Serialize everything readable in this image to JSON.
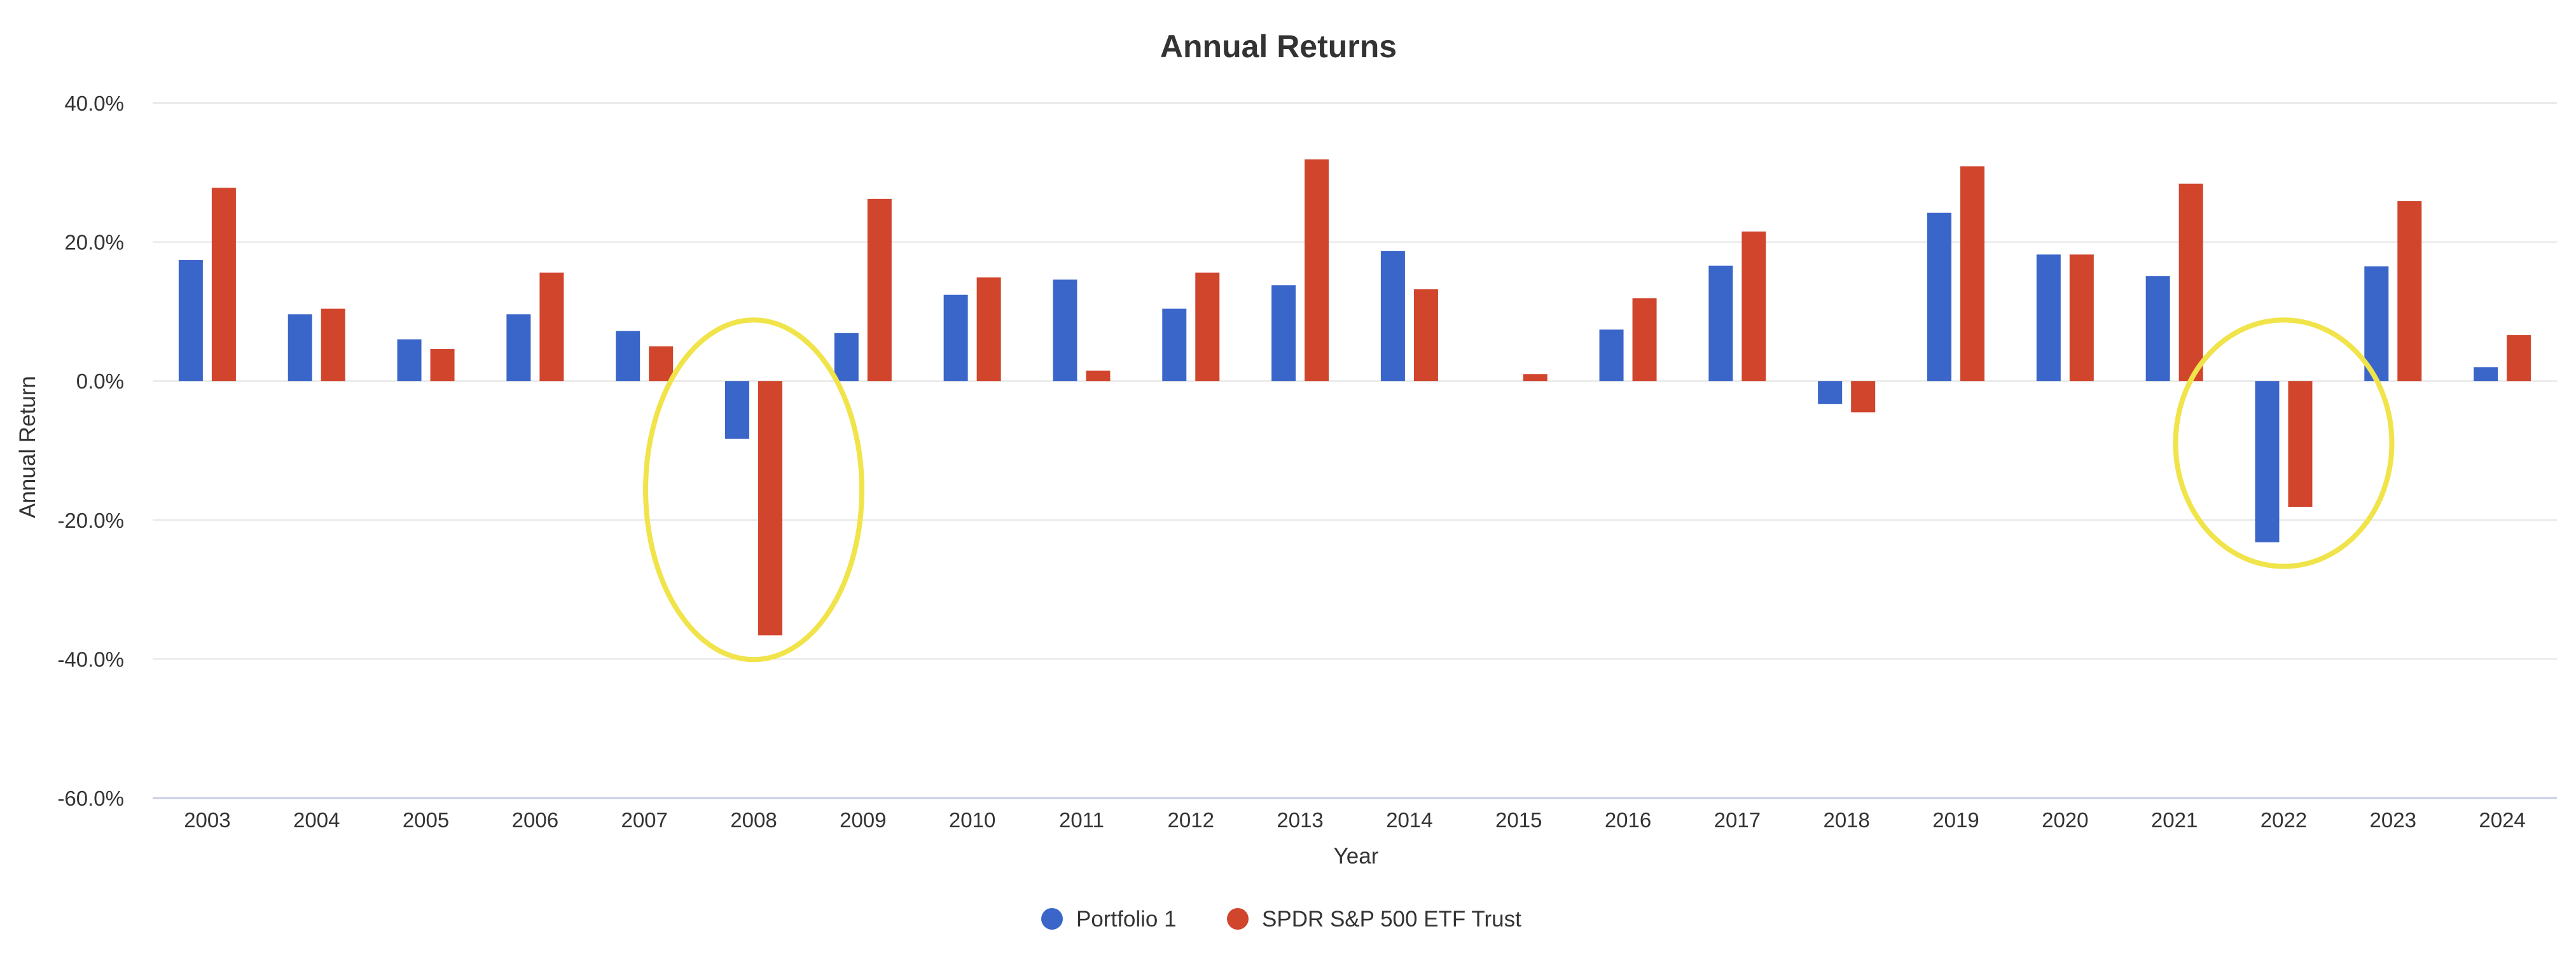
{
  "chart_data": {
    "type": "bar",
    "title": "Annual Returns",
    "xlabel": "Year",
    "ylabel": "Annual Return",
    "ylim": [
      -60,
      40
    ],
    "yticks": [
      40,
      20,
      0,
      -20,
      -40,
      -60
    ],
    "ytick_labels": [
      "40.0%",
      "20.0%",
      "0.0%",
      "-20.0%",
      "-40.0%",
      "-60.0%"
    ],
    "grid": true,
    "legend_position": "bottom-center",
    "categories": [
      "2003",
      "2004",
      "2005",
      "2006",
      "2007",
      "2008",
      "2009",
      "2010",
      "2011",
      "2012",
      "2013",
      "2014",
      "2015",
      "2016",
      "2017",
      "2018",
      "2019",
      "2020",
      "2021",
      "2022",
      "2023",
      "2024"
    ],
    "series": [
      {
        "name": "Portfolio 1",
        "color": "#3b66c9",
        "values": [
          17.4,
          9.6,
          6.0,
          9.6,
          7.2,
          -8.3,
          6.9,
          12.4,
          14.6,
          10.4,
          13.8,
          18.7,
          0.0,
          7.4,
          16.6,
          -3.3,
          24.2,
          18.2,
          15.1,
          -23.2,
          16.5,
          2.0
        ]
      },
      {
        "name": "SPDR S&P 500 ETF Trust",
        "color": "#d0452c",
        "values": [
          27.8,
          10.4,
          4.6,
          15.6,
          5.0,
          -36.6,
          26.2,
          14.9,
          1.5,
          15.6,
          31.9,
          13.2,
          1.0,
          11.9,
          21.5,
          -4.5,
          30.9,
          18.2,
          28.4,
          -18.1,
          25.9,
          6.6
        ]
      }
    ],
    "annotations": [
      {
        "type": "ellipse",
        "category": "2008",
        "color": "#f0e44a"
      },
      {
        "type": "ellipse",
        "category": "2022",
        "color": "#f0e44a"
      }
    ]
  }
}
